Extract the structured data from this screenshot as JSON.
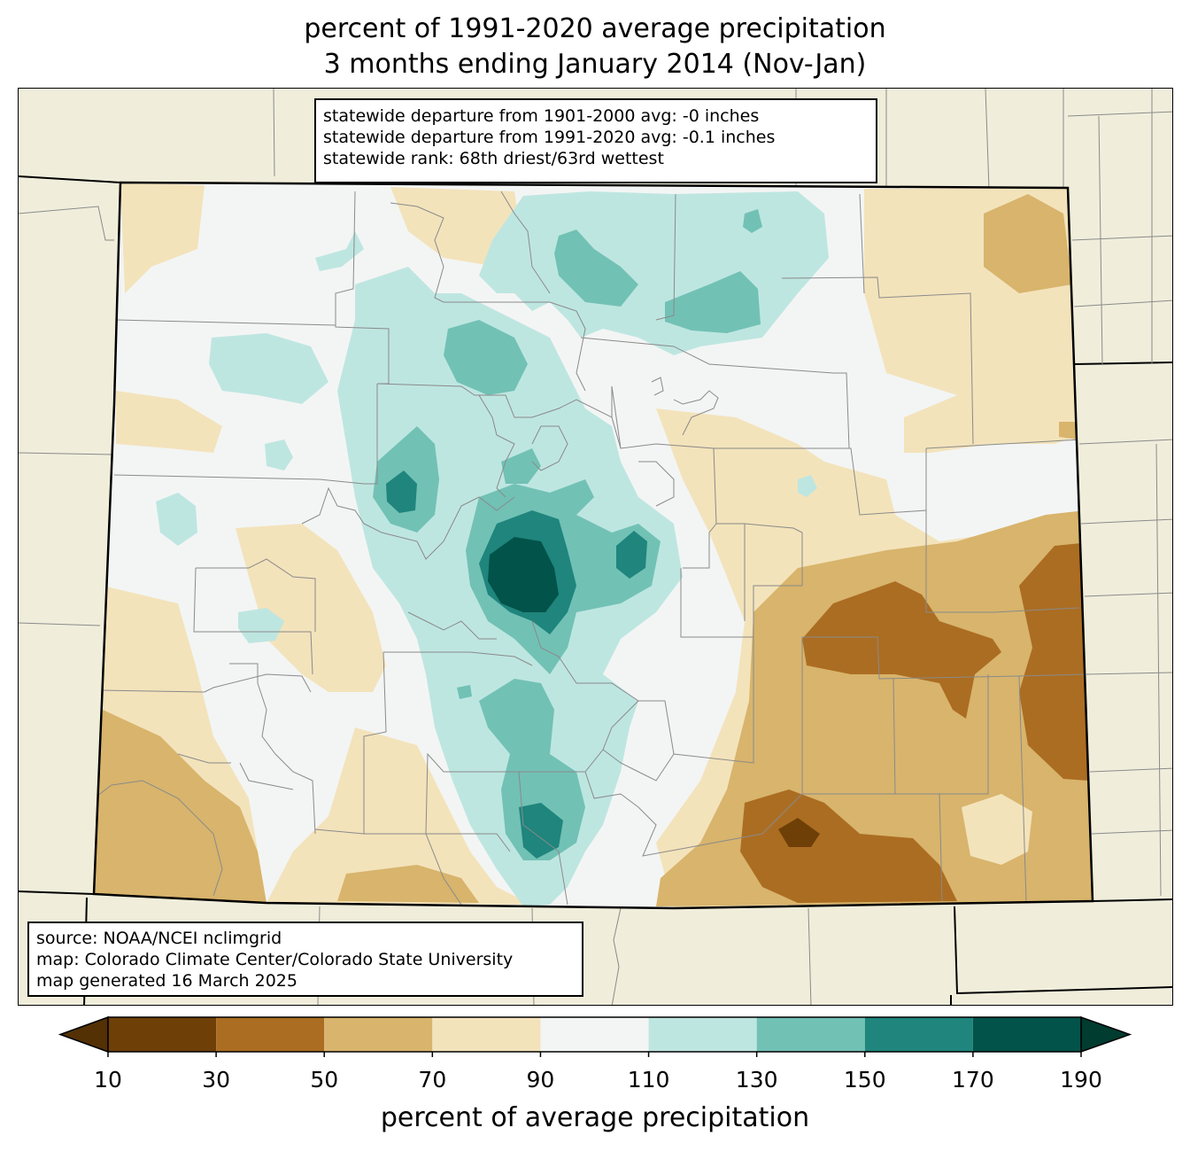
{
  "title": {
    "line1": "percent of 1991-2020 average precipitation",
    "line2": "3 months ending January 2014 (Nov-Jan)"
  },
  "stats_box": {
    "line1": "statewide departure from 1901-2000 avg: -0 inches",
    "line2": "statewide departure from 1991-2020 avg: -0.1 inches",
    "line3": "statewide rank: 68th driest/63rd wettest"
  },
  "source_box": {
    "line1": "source: NOAA/NCEI nclimgrid",
    "line2": "map: Colorado Climate Center/Colorado State University",
    "line3": "map generated 16 March 2025"
  },
  "colorbar": {
    "label": "percent of average precipitation",
    "ticks": [
      "10",
      "30",
      "50",
      "70",
      "90",
      "110",
      "130",
      "150",
      "170",
      "190"
    ],
    "bins": [
      {
        "range": [
          10,
          30
        ],
        "color": "#6f3f08"
      },
      {
        "range": [
          30,
          50
        ],
        "color": "#ab6d22"
      },
      {
        "range": [
          50,
          70
        ],
        "color": "#d8b46c"
      },
      {
        "range": [
          70,
          90
        ],
        "color": "#f3e3bb"
      },
      {
        "range": [
          90,
          110
        ],
        "color": "#f3f5f4"
      },
      {
        "range": [
          110,
          130
        ],
        "color": "#bee6e1"
      },
      {
        "range": [
          130,
          150
        ],
        "color": "#72c1b5"
      },
      {
        "range": [
          150,
          170
        ],
        "color": "#1f857d"
      },
      {
        "range": [
          170,
          190
        ],
        "color": "#02534a"
      }
    ],
    "under_color": "#543005",
    "over_color": "#003c30"
  },
  "map": {
    "region": "Colorado",
    "background_color": "#f0eedb"
  }
}
